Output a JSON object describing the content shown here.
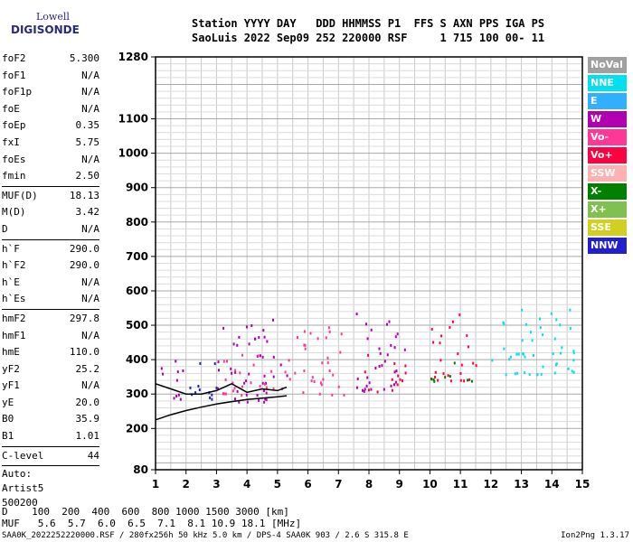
{
  "logo": {
    "top": "Lowell",
    "bottom": "DIGISONDE"
  },
  "header": {
    "line1": "Station YYYY DAY   DDD HHMMSS P1  FFS S AXN PPS IGA PS",
    "line2": "SaoLuis 2022 Sep09 252 220000 RSF     1 715 100 00- 11"
  },
  "params": [
    {
      "name": "foF2",
      "value": "5.300"
    },
    {
      "name": "foF1",
      "value": "N/A"
    },
    {
      "name": "foF1p",
      "value": "N/A"
    },
    {
      "name": "foE",
      "value": "N/A"
    },
    {
      "name": "foEp",
      "value": "0.35"
    },
    {
      "name": "fxI",
      "value": "5.75"
    },
    {
      "name": "foEs",
      "value": "N/A"
    },
    {
      "name": "fmin",
      "value": "2.50"
    },
    {
      "sep": true
    },
    {
      "name": "MUF(D)",
      "value": "18.13"
    },
    {
      "name": "M(D)",
      "value": "3.42"
    },
    {
      "name": "D",
      "value": "N/A"
    },
    {
      "sep": true
    },
    {
      "name": "h`F",
      "value": "290.0"
    },
    {
      "name": "h`F2",
      "value": "290.0"
    },
    {
      "name": "h`E",
      "value": "N/A"
    },
    {
      "name": "h`Es",
      "value": "N/A"
    },
    {
      "sep": true
    },
    {
      "name": "hmF2",
      "value": "297.8"
    },
    {
      "name": "hmF1",
      "value": "N/A"
    },
    {
      "name": "hmE",
      "value": "110.0"
    },
    {
      "name": "yF2",
      "value": "25.2"
    },
    {
      "name": "yF1",
      "value": "N/A"
    },
    {
      "name": "yE",
      "value": "20.0"
    },
    {
      "name": "B0",
      "value": "35.9"
    },
    {
      "name": "B1",
      "value": "1.01"
    },
    {
      "sep": true
    },
    {
      "name": "C-level",
      "value": "44"
    },
    {
      "sep": true
    }
  ],
  "auto": [
    "Auto:",
    "Artist5",
    "500200"
  ],
  "legend": [
    {
      "label": "NoVal",
      "color": "#a0a0a0"
    },
    {
      "label": "NNE",
      "color": "#00e0f0"
    },
    {
      "label": "E",
      "color": "#30b0ff"
    },
    {
      "label": "W",
      "color": "#b000b0"
    },
    {
      "label": "Vo-",
      "color": "#ff3898"
    },
    {
      "label": "Vo+",
      "color": "#ff0040"
    },
    {
      "label": "SSW",
      "color": "#ffb0b0"
    },
    {
      "label": "X-",
      "color": "#008000"
    },
    {
      "label": "X+",
      "color": "#80c050"
    },
    {
      "label": "SSE",
      "color": "#d0d020"
    },
    {
      "label": "NNW",
      "color": "#2020d0"
    }
  ],
  "table": {
    "d_row": "D    100  200  400  600  800 1000 1500 3000 [km]",
    "muf_row": "MUF   5.6  5.7  6.0  6.5  7.1  8.1 10.9 18.1 [MHz]"
  },
  "footer": "SAA0K_2022252220000.RSF / 280fx256h 50 kHz 5.0 km / DPS-4 SAA0K 903 / 2.6 S 315.8 E",
  "version": "Ion2Png 1.3.17",
  "chart_data": {
    "type": "scatter",
    "title": "",
    "xlabel": "",
    "ylabel": "",
    "xlim": [
      1,
      15
    ],
    "ylim": [
      80,
      1280
    ],
    "x_ticks": [
      1,
      2,
      3,
      4,
      5,
      6,
      7,
      8,
      9,
      10,
      11,
      12,
      13,
      14,
      15
    ],
    "y_ticks": [
      80,
      200,
      300,
      400,
      500,
      600,
      700,
      800,
      900,
      1000,
      1100,
      1280
    ],
    "grid": true,
    "profile_curve": {
      "x": [
        1.0,
        1.5,
        2.0,
        2.5,
        3.0,
        3.5,
        4.0,
        4.5,
        5.0,
        5.3
      ],
      "y": [
        225,
        240,
        252,
        262,
        271,
        278,
        284,
        288,
        292,
        295
      ]
    },
    "trace_curve": {
      "x": [
        1.0,
        1.5,
        2.0,
        2.5,
        3.0,
        3.5,
        4.0,
        4.5,
        5.0,
        5.3
      ],
      "y": [
        330,
        315,
        300,
        300,
        310,
        330,
        305,
        315,
        310,
        320
      ]
    },
    "echo_clusters": [
      {
        "x0": 1.0,
        "x1": 2.0,
        "y0": 280,
        "y1": 400,
        "color": "#b000b0"
      },
      {
        "x0": 2.0,
        "x1": 3.0,
        "y0": 280,
        "y1": 420,
        "color": "#2020d0"
      },
      {
        "x0": 3.0,
        "x1": 5.3,
        "y0": 280,
        "y1": 520,
        "color": "#b000b0"
      },
      {
        "x0": 3.0,
        "x1": 5.3,
        "y0": 300,
        "y1": 420,
        "color": "#ff3898"
      },
      {
        "x0": 5.3,
        "x1": 7.2,
        "y0": 300,
        "y1": 500,
        "color": "#ff3898"
      },
      {
        "x0": 7.5,
        "x1": 9.2,
        "y0": 310,
        "y1": 540,
        "color": "#b000b0"
      },
      {
        "x0": 7.8,
        "x1": 9.2,
        "y0": 310,
        "y1": 420,
        "color": "#ff0040"
      },
      {
        "x0": 10.0,
        "x1": 11.5,
        "y0": 340,
        "y1": 540,
        "color": "#ff0040"
      },
      {
        "x0": 10.0,
        "x1": 11.5,
        "y0": 340,
        "y1": 400,
        "color": "#008000"
      },
      {
        "x0": 12.0,
        "x1": 14.8,
        "y0": 360,
        "y1": 560,
        "color": "#00e0f0"
      }
    ]
  }
}
